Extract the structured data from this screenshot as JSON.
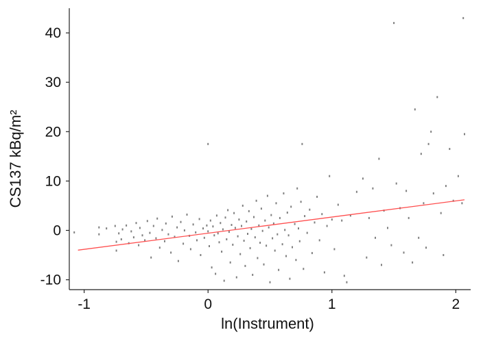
{
  "chart_data": {
    "type": "scatter",
    "xlabel": "ln(Instrument)",
    "ylabel": "CS137 kBq/m²",
    "xlim": [
      -1.12,
      2.12
    ],
    "ylim": [
      -12,
      45
    ],
    "x_ticks": [
      -1,
      0,
      1,
      2
    ],
    "y_ticks": [
      -10,
      0,
      10,
      20,
      30,
      40
    ],
    "x_tick_labels": [
      "-1",
      "0",
      "1",
      "2"
    ],
    "y_tick_labels": [
      "-10",
      "0",
      "10",
      "20",
      "30",
      "40"
    ],
    "grid": false,
    "legend": "none",
    "point_color": "#7f7f7f",
    "fit_line_color": "#ff4d4d",
    "fit_line": {
      "x": [
        -1.05,
        2.07
      ],
      "y": [
        -4.0,
        6.2
      ]
    },
    "points": [
      [
        -1.08,
        -0.4
      ],
      [
        -0.88,
        0.6
      ],
      [
        -0.88,
        -0.8
      ],
      [
        -0.82,
        0.4
      ],
      [
        -0.75,
        0.9
      ],
      [
        -0.74,
        -4.1
      ],
      [
        -0.74,
        -2.3
      ],
      [
        -0.72,
        -0.6
      ],
      [
        -0.7,
        -1.8
      ],
      [
        -0.69,
        0.2
      ],
      [
        -0.66,
        1.0
      ],
      [
        -0.64,
        -2.6
      ],
      [
        -0.62,
        -0.2
      ],
      [
        -0.6,
        -1.4
      ],
      [
        -0.58,
        1.5
      ],
      [
        -0.56,
        -3.0
      ],
      [
        -0.55,
        0.5
      ],
      [
        -0.53,
        -1.0
      ],
      [
        -0.51,
        -2.0
      ],
      [
        -0.49,
        1.9
      ],
      [
        -0.47,
        -0.5
      ],
      [
        -0.46,
        -5.5
      ],
      [
        -0.44,
        0.9
      ],
      [
        -0.42,
        -1.6
      ],
      [
        -0.41,
        2.4
      ],
      [
        -0.39,
        -3.5
      ],
      [
        -0.37,
        0.1
      ],
      [
        -0.35,
        -2.2
      ],
      [
        -0.34,
        1.4
      ],
      [
        -0.32,
        -0.8
      ],
      [
        -0.3,
        -4.5
      ],
      [
        -0.29,
        2.8
      ],
      [
        -0.27,
        -1.3
      ],
      [
        -0.25,
        0.6
      ],
      [
        -0.24,
        -6.2
      ],
      [
        -0.22,
        1.7
      ],
      [
        -0.2,
        -2.7
      ],
      [
        -0.19,
        0.0
      ],
      [
        -0.17,
        3.2
      ],
      [
        -0.15,
        -1.1
      ],
      [
        -0.14,
        -3.8
      ],
      [
        -0.12,
        1.2
      ],
      [
        -0.1,
        -0.4
      ],
      [
        -0.09,
        -2.0
      ],
      [
        -0.07,
        2.3
      ],
      [
        -0.06,
        -5.0
      ],
      [
        -0.04,
        0.4
      ],
      [
        -0.03,
        -1.5
      ],
      [
        -0.01,
        1.0
      ],
      [
        0.0,
        17.5
      ],
      [
        0.0,
        -0.2
      ],
      [
        0.01,
        -3.2
      ],
      [
        0.02,
        2.0
      ],
      [
        0.03,
        -7.5
      ],
      [
        0.04,
        0.8
      ],
      [
        0.05,
        -1.0
      ],
      [
        0.06,
        -8.8
      ],
      [
        0.07,
        3.0
      ],
      [
        0.08,
        -0.6
      ],
      [
        0.09,
        -2.4
      ],
      [
        0.1,
        1.5
      ],
      [
        0.11,
        -4.3
      ],
      [
        0.12,
        0.2
      ],
      [
        0.13,
        -10.2
      ],
      [
        0.14,
        2.6
      ],
      [
        0.15,
        -1.8
      ],
      [
        0.16,
        4.1
      ],
      [
        0.17,
        -0.3
      ],
      [
        0.18,
        -6.5
      ],
      [
        0.19,
        1.1
      ],
      [
        0.2,
        -2.9
      ],
      [
        0.21,
        3.5
      ],
      [
        0.22,
        0.5
      ],
      [
        0.23,
        -9.5
      ],
      [
        0.24,
        -1.2
      ],
      [
        0.25,
        2.2
      ],
      [
        0.26,
        -4.8
      ],
      [
        0.27,
        0.9
      ],
      [
        0.28,
        5.0
      ],
      [
        0.29,
        -2.1
      ],
      [
        0.3,
        -7.2
      ],
      [
        0.31,
        1.8
      ],
      [
        0.32,
        -0.7
      ],
      [
        0.33,
        3.9
      ],
      [
        0.34,
        -3.6
      ],
      [
        0.35,
        0.3
      ],
      [
        0.36,
        -9.0
      ],
      [
        0.37,
        2.7
      ],
      [
        0.38,
        -1.4
      ],
      [
        0.39,
        6.0
      ],
      [
        0.4,
        -5.6
      ],
      [
        0.41,
        1.0
      ],
      [
        0.42,
        -2.5
      ],
      [
        0.43,
        4.4
      ],
      [
        0.44,
        -0.1
      ],
      [
        0.45,
        -6.9
      ],
      [
        0.46,
        2.0
      ],
      [
        0.47,
        -3.1
      ],
      [
        0.48,
        7.0
      ],
      [
        0.49,
        0.6
      ],
      [
        0.5,
        -10.5
      ],
      [
        0.51,
        3.1
      ],
      [
        0.52,
        -1.6
      ],
      [
        0.53,
        1.4
      ],
      [
        0.54,
        -4.1
      ],
      [
        0.55,
        5.5
      ],
      [
        0.56,
        -0.8
      ],
      [
        0.57,
        -8.0
      ],
      [
        0.58,
        2.5
      ],
      [
        0.6,
        -2.8
      ],
      [
        0.61,
        7.5
      ],
      [
        0.62,
        0.1
      ],
      [
        0.63,
        -5.2
      ],
      [
        0.64,
        3.6
      ],
      [
        0.65,
        -1.0
      ],
      [
        0.66,
        -9.8
      ],
      [
        0.67,
        4.8
      ],
      [
        0.68,
        -3.4
      ],
      [
        0.7,
        1.3
      ],
      [
        0.71,
        -6.0
      ],
      [
        0.72,
        8.5
      ],
      [
        0.73,
        0.4
      ],
      [
        0.74,
        -2.2
      ],
      [
        0.75,
        5.8
      ],
      [
        0.76,
        17.5
      ],
      [
        0.77,
        -7.8
      ],
      [
        0.78,
        2.9
      ],
      [
        0.8,
        -0.5
      ],
      [
        0.82,
        4.2
      ],
      [
        0.84,
        -4.6
      ],
      [
        0.86,
        1.6
      ],
      [
        0.88,
        6.8
      ],
      [
        0.9,
        -2.0
      ],
      [
        0.92,
        3.3
      ],
      [
        0.94,
        -8.5
      ],
      [
        0.96,
        0.9
      ],
      [
        0.98,
        11.0
      ],
      [
        1.0,
        2.2
      ],
      [
        1.02,
        -3.8
      ],
      [
        1.05,
        5.2
      ],
      [
        1.08,
        2.0
      ],
      [
        1.1,
        -9.2
      ],
      [
        1.12,
        -10.5
      ],
      [
        1.15,
        3.0
      ],
      [
        1.2,
        7.8
      ],
      [
        1.25,
        10.5
      ],
      [
        1.28,
        -5.5
      ],
      [
        1.3,
        2.5
      ],
      [
        1.33,
        8.5
      ],
      [
        1.35,
        -1.5
      ],
      [
        1.38,
        14.5
      ],
      [
        1.4,
        -7.0
      ],
      [
        1.42,
        4.0
      ],
      [
        1.45,
        0.5
      ],
      [
        1.48,
        -3.0
      ],
      [
        1.5,
        42.0
      ],
      [
        1.52,
        9.5
      ],
      [
        1.55,
        4.5
      ],
      [
        1.58,
        -4.5
      ],
      [
        1.6,
        8.0
      ],
      [
        1.62,
        2.5
      ],
      [
        1.65,
        -6.5
      ],
      [
        1.67,
        24.5
      ],
      [
        1.7,
        -1.5
      ],
      [
        1.72,
        15.5
      ],
      [
        1.74,
        5.5
      ],
      [
        1.76,
        -3.5
      ],
      [
        1.78,
        17.5
      ],
      [
        1.8,
        20.0
      ],
      [
        1.82,
        7.5
      ],
      [
        1.85,
        27.0
      ],
      [
        1.88,
        3.5
      ],
      [
        1.9,
        -5.0
      ],
      [
        1.92,
        9.0
      ],
      [
        1.95,
        16.5
      ],
      [
        1.98,
        6.0
      ],
      [
        2.02,
        11.0
      ],
      [
        2.06,
        43.0
      ],
      [
        2.07,
        19.5
      ],
      [
        2.05,
        5.5
      ]
    ]
  }
}
